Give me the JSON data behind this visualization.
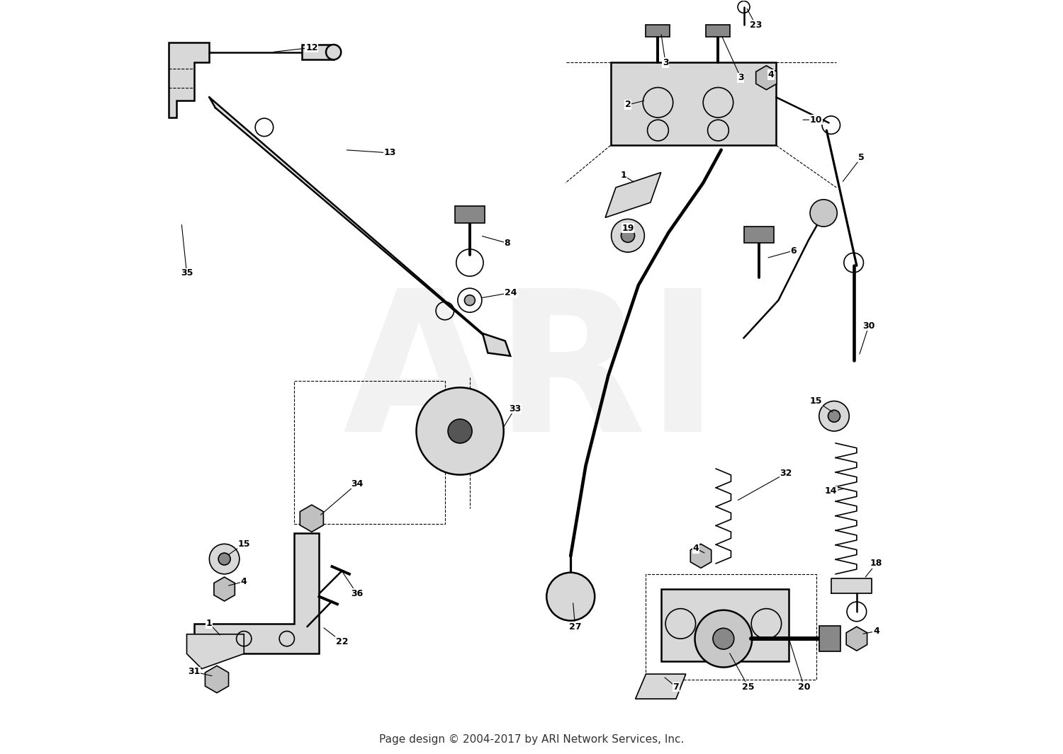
{
  "footer": "Page design © 2004-2017 by ARI Network Services, Inc.",
  "footer_fontsize": 11,
  "background_color": "#ffffff",
  "line_color": "#000000",
  "watermark_text": "ARI",
  "watermark_color": "#cccccc",
  "watermark_fontsize": 200,
  "watermark_alpha": 0.25
}
